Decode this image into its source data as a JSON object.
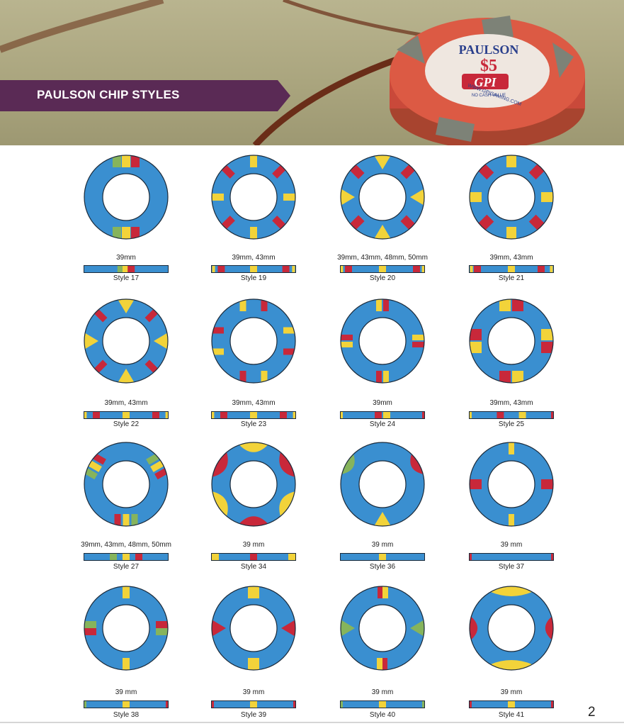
{
  "header": {
    "title": "PAULSON CHIP STYLES",
    "chip_brand": "PAULSON",
    "chip_value": "$5",
    "chip_logo": "GPI",
    "chip_note": "NO CASH VALUE",
    "chip_url": "WWW.GPIGAMING.COM"
  },
  "colors": {
    "blue": "#3a8fd0",
    "red": "#c8283a",
    "yellow": "#f2d33a",
    "green": "#86b45c",
    "banner": "#5a2a55"
  },
  "chips": [
    {
      "size": "39mm",
      "style": "Style 17"
    },
    {
      "size": "39mm, 43mm",
      "style": "Style 19"
    },
    {
      "size": "39mm, 43mm, 48mm, 50mm",
      "style": "Style 20"
    },
    {
      "size": "39mm, 43mm",
      "style": "Style 21"
    },
    {
      "size": "39mm, 43mm",
      "style": "Style 22"
    },
    {
      "size": "39mm, 43mm",
      "style": "Style 23"
    },
    {
      "size": "39mm",
      "style": "Style 24"
    },
    {
      "size": "39mm, 43mm",
      "style": "Style 25"
    },
    {
      "size": "39mm, 43mm, 48mm, 50mm",
      "style": "Style 27"
    },
    {
      "size": "39 mm",
      "style": "Style 34"
    },
    {
      "size": "39 mm",
      "style": "Style 36"
    },
    {
      "size": "39 mm",
      "style": "Style 37"
    },
    {
      "size": "39 mm",
      "style": "Style 38"
    },
    {
      "size": "39 mm",
      "style": "Style 39"
    },
    {
      "size": "39 mm",
      "style": "Style 40"
    },
    {
      "size": "39 mm",
      "style": "Style 41"
    }
  ],
  "page_number": "2"
}
